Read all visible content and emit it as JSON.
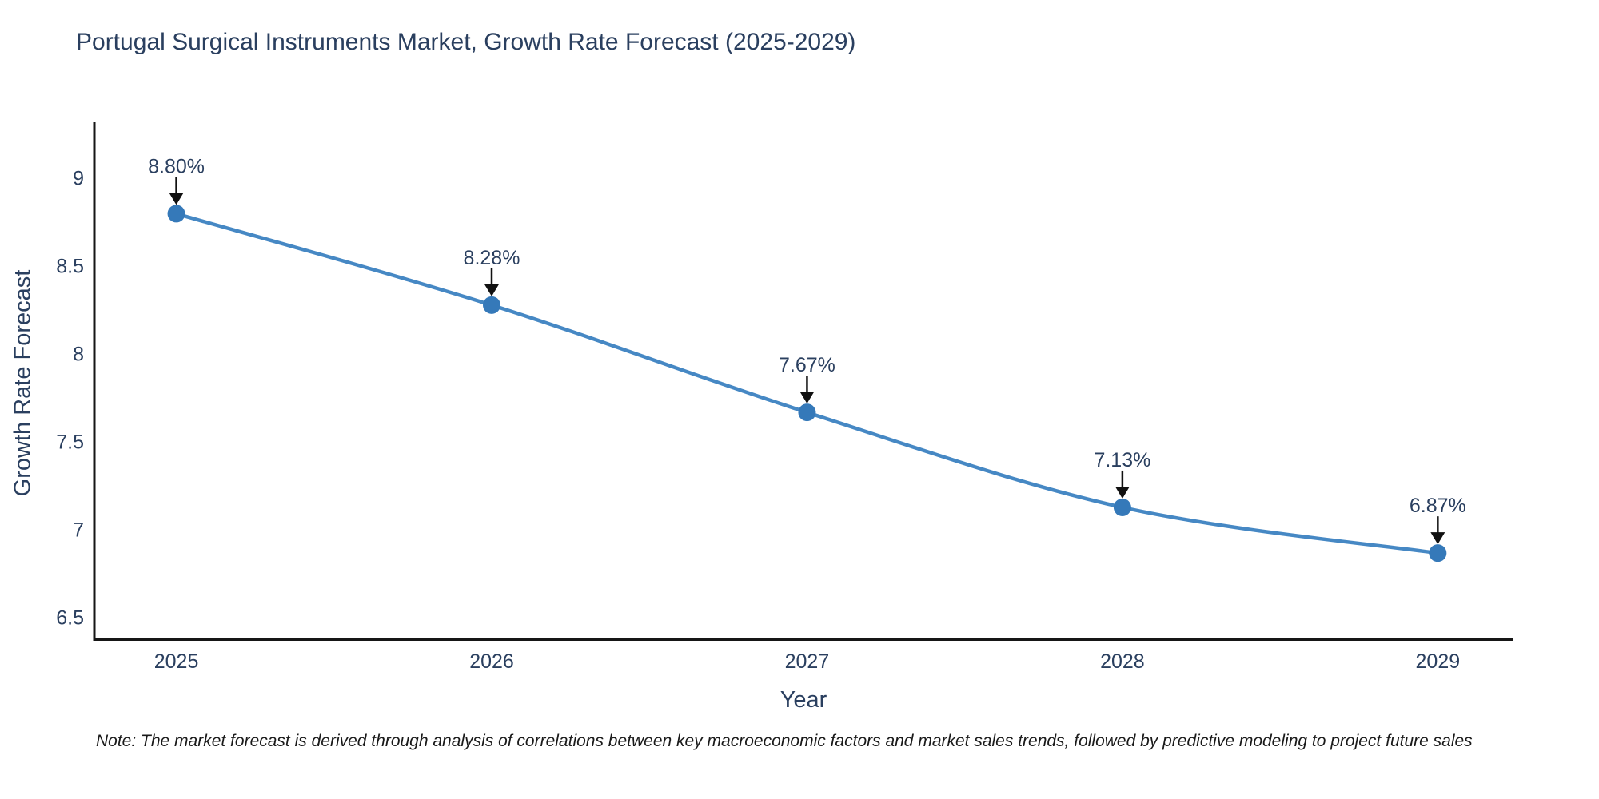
{
  "title": "Portugal Surgical Instruments Market, Growth Rate Forecast (2025-2029)",
  "note": "Note: The market forecast is derived through analysis of correlations between key macroeconomic factors and market sales trends, followed by predictive modeling to project future sales",
  "chart_data": {
    "type": "line",
    "title": "Portugal Surgical Instruments Market, Growth Rate Forecast (2025-2029)",
    "xlabel": "Year",
    "ylabel": "Growth Rate Forecast",
    "x": [
      2025,
      2026,
      2027,
      2028,
      2029
    ],
    "values": [
      8.8,
      8.28,
      7.67,
      7.13,
      6.87
    ],
    "point_labels": [
      "8.80%",
      "8.28%",
      "7.67%",
      "7.13%",
      "6.87%"
    ],
    "xticks": [
      2025,
      2026,
      2027,
      2028,
      2029
    ],
    "xtick_labels": [
      "2025",
      "2026",
      "2027",
      "2028",
      "2029"
    ],
    "yticks": [
      6.5,
      7,
      7.5,
      8,
      8.5,
      9
    ],
    "ytick_labels": [
      "6.5",
      "7",
      "7.5",
      "8",
      "8.5",
      "9"
    ],
    "xlim": [
      2024.74,
      2029.24
    ],
    "ylim": [
      6.38,
      9.32
    ],
    "grid": false,
    "legend": "none",
    "line_shape": "spline",
    "annotations": "value labels with black down-arrows above each point",
    "colors": {
      "line": "#4688c4",
      "marker": "#3579b9",
      "arrow": "#111111",
      "text": "#2a3f5f",
      "axis": "#161616",
      "note_text": "#1a1a1a",
      "background": "#ffffff"
    }
  }
}
